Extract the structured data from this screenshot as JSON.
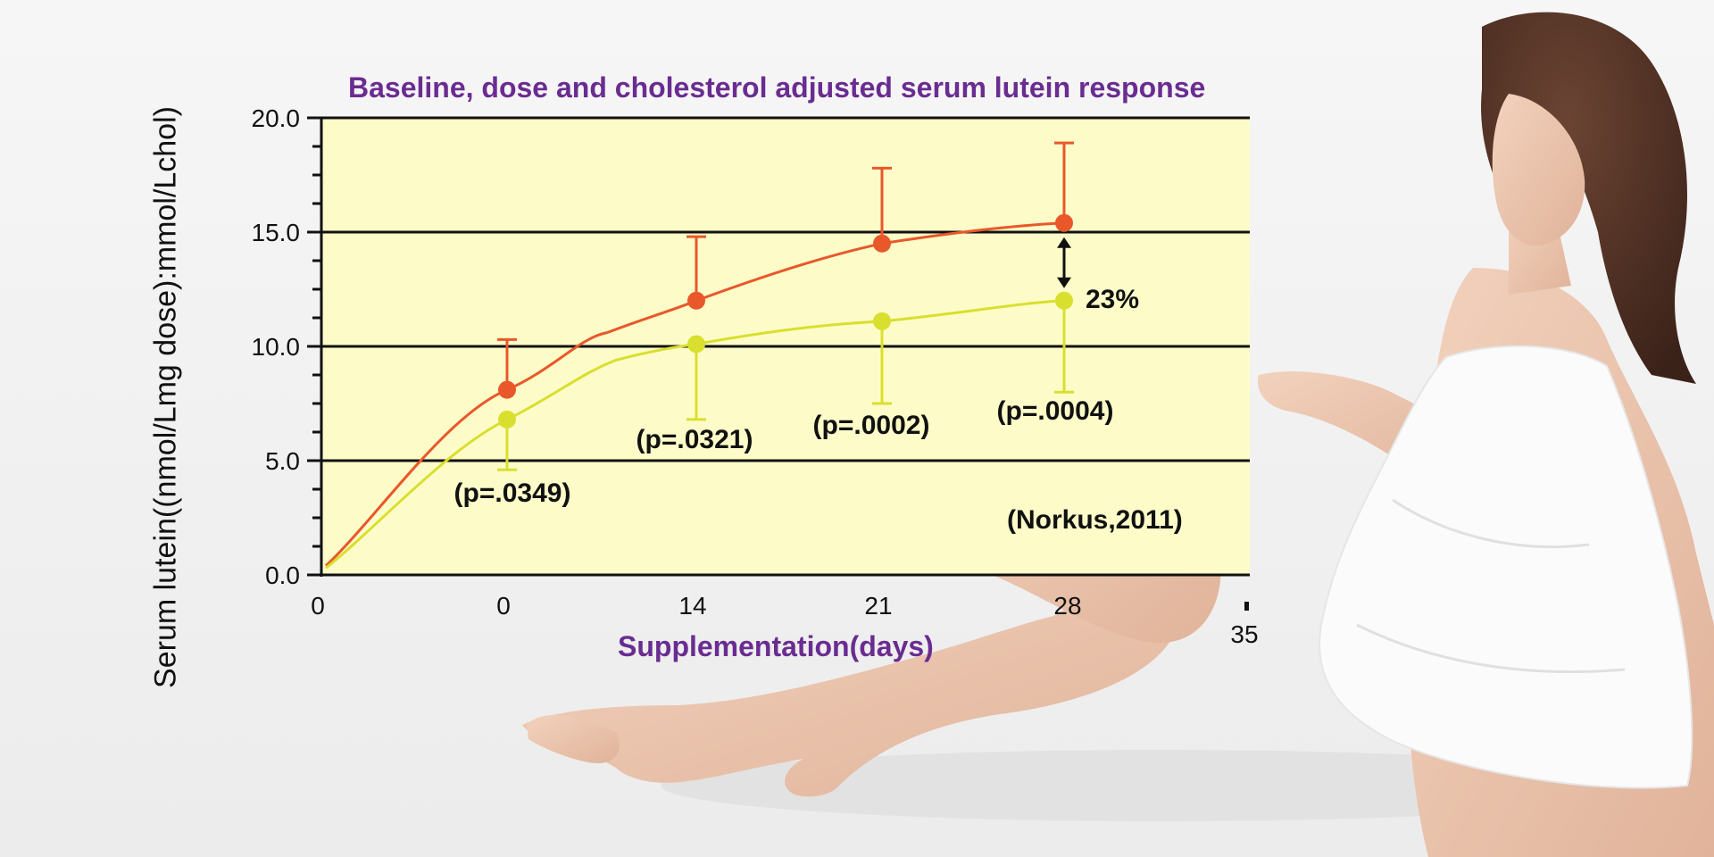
{
  "colors": {
    "series_high": "#e8582a",
    "series_low": "#d9df2e",
    "plot_background": "#fdfcc8",
    "title": "#6a2c91"
  },
  "chart_data": {
    "type": "line",
    "title": "Baseline, dose and cholesterol adjusted serum lutein response",
    "xlabel": "Supplementation(days)",
    "ylabel": "Serum lutein((nmol/Lmg dose):mmol/Lchol)",
    "x_tick_labels": [
      "0",
      "0",
      "14",
      "21",
      "28",
      "35"
    ],
    "y_tick_labels": [
      "0.0",
      "5.0",
      "10.0",
      "15.0",
      "20.0"
    ],
    "ylim": [
      0,
      20
    ],
    "grid": "horizontal major lines at 5, 10, 15",
    "x_categories": [
      "0",
      "14",
      "21",
      "28"
    ],
    "series": [
      {
        "color_key": "series_high",
        "points": [
          {
            "x": "0",
            "y": 8.1,
            "err_top": 10.3
          },
          {
            "x": "14",
            "y": 12.0,
            "err_top": 14.8
          },
          {
            "x": "21",
            "y": 14.5,
            "err_top": 17.8
          },
          {
            "x": "28",
            "y": 15.4,
            "err_top": 18.9
          }
        ]
      },
      {
        "color_key": "series_low",
        "points": [
          {
            "x": "0",
            "y": 6.8,
            "err_bottom": 4.6
          },
          {
            "x": "14",
            "y": 10.1,
            "err_bottom": 6.8
          },
          {
            "x": "21",
            "y": 11.1,
            "err_bottom": 7.5
          },
          {
            "x": "28",
            "y": 12.0,
            "err_bottom": 8.0
          }
        ]
      }
    ],
    "p_values": [
      {
        "x": "0",
        "label": "(p=.0349)"
      },
      {
        "x": "14",
        "label": "(p=.0321)"
      },
      {
        "x": "21",
        "label": "(p=.0002)"
      },
      {
        "x": "28",
        "label": "(p=.0004)"
      }
    ],
    "difference_annotation": {
      "x": "28",
      "label": "23%"
    },
    "citation": "(Norkus,2011)"
  }
}
